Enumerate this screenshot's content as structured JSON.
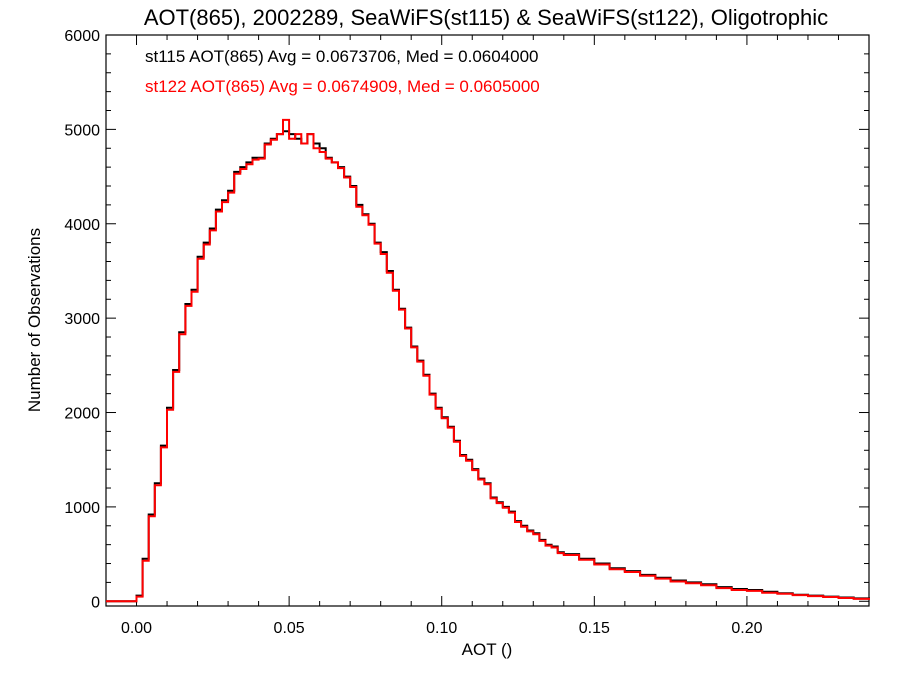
{
  "chart_data": {
    "type": "line",
    "step": true,
    "title": "AOT(865), 2002289, SeaWiFS(st115) & SeaWiFS(st122), Oligotrophic",
    "xlabel": "AOT ()",
    "ylabel": "Number of Observations",
    "xlim": [
      -0.01,
      0.24
    ],
    "ylim": [
      -50,
      6000
    ],
    "x_ticks": [
      {
        "value": 0.0,
        "label": "0.00"
      },
      {
        "value": 0.05,
        "label": "0.05"
      },
      {
        "value": 0.1,
        "label": "0.10"
      },
      {
        "value": 0.15,
        "label": "0.15"
      },
      {
        "value": 0.2,
        "label": "0.20"
      }
    ],
    "y_ticks": [
      {
        "value": 0,
        "label": "0"
      },
      {
        "value": 1000,
        "label": "1000"
      },
      {
        "value": 2000,
        "label": "2000"
      },
      {
        "value": 3000,
        "label": "3000"
      },
      {
        "value": 4000,
        "label": "4000"
      },
      {
        "value": 5000,
        "label": "5000"
      },
      {
        "value": 6000,
        "label": "6000"
      }
    ],
    "annotations": [
      {
        "text": "st115 AOT(865) Avg = 0.0673706, Med = 0.0604000",
        "color": "#000000"
      },
      {
        "text": "st122 AOT(865) Avg = 0.0674909, Med = 0.0605000",
        "color": "#ff0000"
      }
    ],
    "series": [
      {
        "color": "#000000",
        "x": [
          -0.01,
          0.0,
          0.002,
          0.004,
          0.006,
          0.008,
          0.01,
          0.012,
          0.014,
          0.016,
          0.018,
          0.02,
          0.022,
          0.024,
          0.026,
          0.028,
          0.03,
          0.032,
          0.034,
          0.036,
          0.038,
          0.04,
          0.042,
          0.044,
          0.046,
          0.048,
          0.05,
          0.052,
          0.054,
          0.056,
          0.058,
          0.06,
          0.062,
          0.064,
          0.066,
          0.068,
          0.07,
          0.072,
          0.074,
          0.076,
          0.078,
          0.08,
          0.082,
          0.084,
          0.086,
          0.088,
          0.09,
          0.092,
          0.094,
          0.096,
          0.098,
          0.1,
          0.102,
          0.104,
          0.106,
          0.108,
          0.11,
          0.112,
          0.114,
          0.116,
          0.118,
          0.12,
          0.122,
          0.124,
          0.126,
          0.128,
          0.13,
          0.132,
          0.134,
          0.136,
          0.138,
          0.14,
          0.145,
          0.15,
          0.155,
          0.16,
          0.165,
          0.17,
          0.175,
          0.18,
          0.185,
          0.19,
          0.195,
          0.2,
          0.205,
          0.21,
          0.215,
          0.22,
          0.225,
          0.23,
          0.235,
          0.24
        ],
        "values": [
          0,
          60,
          450,
          920,
          1250,
          1650,
          2050,
          2450,
          2850,
          3150,
          3300,
          3650,
          3800,
          3950,
          4150,
          4250,
          4350,
          4550,
          4600,
          4650,
          4700,
          4700,
          4850,
          4900,
          4950,
          4980,
          4950,
          4900,
          4850,
          4950,
          4850,
          4800,
          4700,
          4650,
          4600,
          4500,
          4400,
          4200,
          4100,
          4000,
          3800,
          3700,
          3500,
          3300,
          3100,
          2900,
          2700,
          2550,
          2400,
          2200,
          2050,
          1950,
          1850,
          1700,
          1550,
          1500,
          1400,
          1300,
          1250,
          1100,
          1050,
          1000,
          950,
          850,
          800,
          750,
          720,
          650,
          600,
          580,
          520,
          500,
          450,
          400,
          350,
          320,
          280,
          250,
          220,
          200,
          180,
          150,
          130,
          120,
          100,
          85,
          70,
          60,
          50,
          40,
          30,
          20
        ]
      },
      {
        "color": "#ff0000",
        "x": [
          -0.01,
          0.0,
          0.002,
          0.004,
          0.006,
          0.008,
          0.01,
          0.012,
          0.014,
          0.016,
          0.018,
          0.02,
          0.022,
          0.024,
          0.026,
          0.028,
          0.03,
          0.032,
          0.034,
          0.036,
          0.038,
          0.04,
          0.042,
          0.044,
          0.046,
          0.048,
          0.05,
          0.052,
          0.054,
          0.056,
          0.058,
          0.06,
          0.062,
          0.064,
          0.066,
          0.068,
          0.07,
          0.072,
          0.074,
          0.076,
          0.078,
          0.08,
          0.082,
          0.084,
          0.086,
          0.088,
          0.09,
          0.092,
          0.094,
          0.096,
          0.098,
          0.1,
          0.102,
          0.104,
          0.106,
          0.108,
          0.11,
          0.112,
          0.114,
          0.116,
          0.118,
          0.12,
          0.122,
          0.124,
          0.126,
          0.128,
          0.13,
          0.132,
          0.134,
          0.136,
          0.138,
          0.14,
          0.145,
          0.15,
          0.155,
          0.16,
          0.165,
          0.17,
          0.175,
          0.18,
          0.185,
          0.19,
          0.195,
          0.2,
          0.205,
          0.21,
          0.215,
          0.22,
          0.225,
          0.23,
          0.235,
          0.24
        ],
        "values": [
          0,
          50,
          430,
          900,
          1230,
          1630,
          2030,
          2430,
          2830,
          3130,
          3280,
          3630,
          3780,
          3930,
          4130,
          4230,
          4330,
          4530,
          4580,
          4630,
          4680,
          4690,
          4840,
          4890,
          4950,
          5100,
          4900,
          4950,
          4850,
          4950,
          4800,
          4760,
          4690,
          4650,
          4590,
          4490,
          4390,
          4180,
          4090,
          3990,
          3790,
          3680,
          3480,
          3290,
          3090,
          2890,
          2690,
          2540,
          2390,
          2190,
          2040,
          1940,
          1840,
          1690,
          1540,
          1490,
          1390,
          1290,
          1240,
          1090,
          1040,
          990,
          940,
          840,
          790,
          740,
          710,
          640,
          590,
          570,
          510,
          490,
          440,
          390,
          340,
          310,
          270,
          240,
          210,
          190,
          170,
          140,
          120,
          110,
          90,
          80,
          65,
          55,
          45,
          35,
          25,
          15
        ]
      }
    ]
  }
}
